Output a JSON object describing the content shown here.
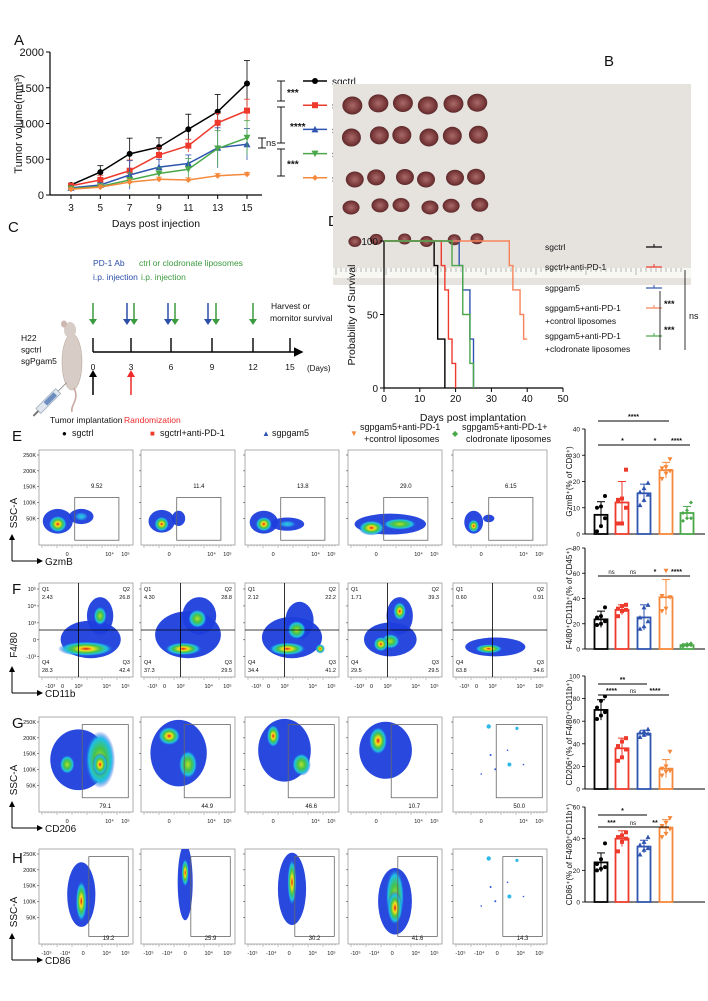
{
  "panel_labels": {
    "A": "A",
    "B": "B",
    "C": "C",
    "D": "D",
    "E": "E",
    "F": "F",
    "G": "G",
    "H": "H"
  },
  "colors": {
    "sgctrl": "#000000",
    "anti": "#ee3a2c",
    "pgam": "#2f55b0",
    "clod": "#4aa84a",
    "ctrl_lipo": "#f5883a"
  },
  "chart_data": [
    {
      "type": "line",
      "panel": "A",
      "xlabel": "Days post injection",
      "ylabel": "Tumor volume(mm³)",
      "ylim": [
        0,
        2000
      ],
      "y_ticks": [
        0,
        500,
        1000,
        1500,
        2000
      ],
      "x": [
        3,
        5,
        7,
        9,
        11,
        13,
        15
      ],
      "series": [
        {
          "name": "sgctrl",
          "color": "#000000",
          "marker": "circle",
          "values": [
            140,
            320,
            575,
            670,
            920,
            1165,
            1560
          ],
          "err": [
            20,
            90,
            220,
            130,
            210,
            240,
            320
          ]
        },
        {
          "name": "sgctrl+anti-PD-1",
          "color": "#ee3a2c",
          "marker": "square",
          "values": [
            130,
            210,
            340,
            560,
            690,
            1010,
            1180
          ],
          "err": [
            30,
            60,
            150,
            100,
            90,
            130,
            160
          ]
        },
        {
          "name": "sgpgam5",
          "color": "#2f55b0",
          "marker": "triangle-up",
          "values": [
            100,
            140,
            280,
            390,
            440,
            660,
            710
          ],
          "err": [
            20,
            30,
            200,
            110,
            120,
            280,
            220
          ]
        },
        {
          "name": "sgpgam5+anti-PD-1+clodronate liposomes",
          "color": "#4aa84a",
          "marker": "triangle-down",
          "values": [
            90,
            120,
            210,
            300,
            360,
            650,
            800
          ],
          "err": [
            20,
            30,
            100,
            80,
            150,
            250,
            240
          ]
        },
        {
          "name": "sgpgam5+anti-PD-1+control liposomes",
          "color": "#f5883a",
          "marker": "diamond",
          "values": [
            80,
            110,
            180,
            220,
            210,
            270,
            290
          ],
          "err": [
            20,
            30,
            40,
            30,
            30,
            30,
            25
          ]
        }
      ],
      "significance": [
        "***",
        "****",
        "ns",
        "***"
      ]
    },
    {
      "type": "line",
      "subtype": "kaplan-meier",
      "panel": "D",
      "xlabel": "Days post implantation",
      "ylabel": "Probability of Survival",
      "xlim": [
        0,
        50
      ],
      "ylim": [
        0,
        100
      ],
      "x_ticks": [
        0,
        10,
        20,
        30,
        40,
        50
      ],
      "y_ticks": [
        0,
        50,
        100
      ],
      "series": [
        {
          "name": "sgctrl",
          "color": "#000000",
          "events": [
            [
              14,
              83.3
            ],
            [
              15,
              33.3
            ],
            [
              17,
              0
            ]
          ],
          "end": 17
        },
        {
          "name": "sgctrl+anti-PD-1",
          "color": "#ee3a2c",
          "events": [
            [
              16,
              83.3
            ],
            [
              17,
              66.7
            ],
            [
              18,
              33.3
            ],
            [
              19,
              16.7
            ],
            [
              20,
              0
            ]
          ],
          "end": 20
        },
        {
          "name": "sgpgam5",
          "color": "#2f55b0",
          "events": [
            [
              21,
              83.3
            ],
            [
              22,
              66.7
            ],
            [
              24,
              33.3
            ],
            [
              25,
              0
            ]
          ],
          "end": 25
        },
        {
          "name": "sgpgam5+anti-PD-1",
          "name2": "+control liposomes",
          "color": "#f7835a",
          "events": [
            [
              35,
              83.3
            ],
            [
              36,
              66.7
            ],
            [
              38,
              50
            ],
            [
              39,
              33.3
            ]
          ],
          "end": 40
        },
        {
          "name": "sgpgam5+anti-PD-1",
          "name2": "+clodronate liposomes",
          "color": "#4aa84a",
          "events": [
            [
              19,
              83.3
            ],
            [
              22,
              50
            ],
            [
              24,
              16.7
            ],
            [
              25,
              0
            ]
          ],
          "end": 25
        }
      ],
      "significance": [
        "***",
        "***",
        "ns"
      ]
    },
    {
      "type": "bar",
      "panel": "E",
      "ylabel": "GzmB⁺(% of CD8⁺)",
      "ylim": [
        0,
        40
      ],
      "y_ticks": [
        0,
        10,
        20,
        30,
        40
      ],
      "categories": [
        "sgctrl",
        "sgctrl+anti-PD-1",
        "sgpgam5",
        "sgpgam5+anti-PD-1+control liposomes",
        "sgpgam5+anti-PD-1+clodronate liposomes"
      ],
      "values": [
        7.3,
        12,
        15.5,
        24.3,
        8
      ],
      "sd": [
        5,
        8,
        3.5,
        3,
        2.5
      ],
      "points": [
        [
          1,
          3,
          6,
          10,
          10.5,
          14.5
        ],
        [
          4,
          4,
          10,
          13,
          13.5,
          24.5
        ],
        [
          11,
          13,
          15,
          16,
          17.5,
          19.5
        ],
        [
          21,
          23,
          24,
          25,
          25.5,
          28.5
        ],
        [
          5,
          6,
          6,
          8,
          9,
          12
        ]
      ],
      "significance": [
        {
          "from": 0,
          "to": 3,
          "label": "****",
          "level": 1
        },
        {
          "from": 0,
          "to": 2,
          "label": "*",
          "level": 0
        },
        {
          "from": 2,
          "to": 3,
          "label": "*",
          "level": 0
        },
        {
          "from": 3,
          "to": 4,
          "label": "****",
          "level": 0
        }
      ]
    },
    {
      "type": "bar",
      "panel": "F",
      "ylabel": "F4/80⁺CD11b⁺(% of CD45⁺)",
      "ylim": [
        0,
        80
      ],
      "y_ticks": [
        0,
        20,
        40,
        60,
        80
      ],
      "categories": [
        "sgctrl",
        "sgctrl+anti-PD-1",
        "sgpgam5",
        "sgpgam5+anti-PD-1+control liposomes",
        "sgpgam5+anti-PD-1+clodronate liposomes"
      ],
      "values": [
        23.5,
        31,
        25,
        41,
        3
      ],
      "sd": [
        6.5,
        4,
        10,
        14,
        1
      ],
      "points": [
        [
          19,
          20,
          22,
          25,
          26,
          33
        ],
        [
          26,
          30,
          31,
          32,
          34,
          35
        ],
        [
          16,
          18,
          22,
          25,
          33,
          35
        ],
        [
          30,
          32,
          41,
          42,
          62
        ],
        [
          2,
          2.5,
          3,
          3.5,
          4,
          4.5
        ]
      ],
      "significance": [
        {
          "from": 0,
          "to": 1,
          "label": "ns",
          "level": 0
        },
        {
          "from": 1,
          "to": 2,
          "label": "ns",
          "level": 0
        },
        {
          "from": 2,
          "to": 3,
          "label": "*",
          "level": 0
        },
        {
          "from": 3,
          "to": 4,
          "label": "****",
          "level": 0
        }
      ]
    },
    {
      "type": "bar",
      "panel": "G",
      "ylabel": "CD206⁺(% of F4/80⁺CD11b⁺)",
      "ylim": [
        0,
        100
      ],
      "y_ticks": [
        0,
        20,
        40,
        60,
        80,
        100
      ],
      "categories": [
        "sgctrl",
        "sgctrl+anti-PD-1",
        "sgpgam5",
        "sgpgam5+anti-PD-1+control liposomes"
      ],
      "values": [
        70,
        36,
        49,
        18
      ],
      "sd": [
        9,
        9,
        3,
        8
      ],
      "points": [
        [
          62,
          65,
          68,
          72,
          78,
          82
        ],
        [
          25,
          28,
          35,
          38,
          42,
          45
        ],
        [
          46,
          48,
          49,
          50,
          51,
          53
        ],
        [
          12,
          15,
          16,
          18,
          20,
          33
        ]
      ],
      "significance": [
        {
          "from": 0,
          "to": 2,
          "label": "**",
          "level": 1
        },
        {
          "from": 0,
          "to": 1,
          "label": "****",
          "level": 0
        },
        {
          "from": 1,
          "to": 2,
          "label": "ns",
          "level": 0
        },
        {
          "from": 2,
          "to": 3,
          "label": "****",
          "level": 0
        }
      ]
    },
    {
      "type": "bar",
      "panel": "H",
      "ylabel": "CD86⁺(% of F4/80⁺CD11b⁺)",
      "ylim": [
        0,
        60
      ],
      "y_ticks": [
        0,
        20,
        40,
        60
      ],
      "categories": [
        "sgctrl",
        "sgctrl+anti-PD-1",
        "sgpgam5",
        "sgpgam5+anti-PD-1+control liposomes"
      ],
      "values": [
        25,
        40,
        35,
        47
      ],
      "sd": [
        6,
        5,
        4,
        5
      ],
      "points": [
        [
          20,
          21,
          22,
          24,
          27,
          37
        ],
        [
          32,
          38,
          40,
          41,
          42,
          44
        ],
        [
          30,
          33,
          34,
          36,
          38,
          41
        ],
        [
          41,
          43,
          46,
          48,
          50,
          53
        ]
      ],
      "significance": [
        {
          "from": 0,
          "to": 2,
          "label": "*",
          "level": 1
        },
        {
          "from": 0,
          "to": 1,
          "label": "***",
          "level": 0
        },
        {
          "from": 1,
          "to": 2,
          "label": "ns",
          "level": 0
        },
        {
          "from": 2,
          "to": 3,
          "label": "**",
          "level": 0
        }
      ]
    }
  ],
  "panel_c": {
    "pd1_label": "PD-1 Ab",
    "pd1_sub": "i.p. injection",
    "lipo_label": "ctrl or clodronate liposomes",
    "lipo_sub": "i.p. injection",
    "cells": [
      "H22",
      "sgctrl",
      "sgPgam5"
    ],
    "days": [
      "0",
      "3",
      "6",
      "9",
      "12",
      "15"
    ],
    "days_unit": "(Days)",
    "harvest": "Harvest  or",
    "monitor": "mornitor survival",
    "implant": "Tumor implantation",
    "random": "Randomization"
  },
  "legend_e": [
    {
      "l1": "sgctrl",
      "l2": "",
      "sym": "●",
      "color": "#000000"
    },
    {
      "l1": "sgctrl+anti-PD-1",
      "l2": "",
      "sym": "■",
      "color": "#ee3a2c"
    },
    {
      "l1": "sgpgam5",
      "l2": "",
      "sym": "▲",
      "color": "#2f55b0"
    },
    {
      "l1": "sgpgam5+anti-PD-1",
      "l2": "+control liposomes",
      "sym": "▼",
      "color": "#f5883a"
    },
    {
      "l1": "sgpgam5+anti-PD-1+",
      "l2": "clodronate liposomes",
      "sym": "◆",
      "color": "#4aa84a"
    }
  ],
  "flow": {
    "E": {
      "ylabel": "SSC-A",
      "xlabel": "GzmB",
      "y_ticks": [
        "250K",
        "200K",
        "150K",
        "100K",
        "50K"
      ],
      "x_ticks": [
        "0",
        "10⁴",
        "10⁵"
      ],
      "gates": [
        "9.52",
        "11.4",
        "13.8",
        "29.0",
        "6.15"
      ]
    },
    "F": {
      "ylabel": "F4/80",
      "xlabel": "CD11b",
      "y_ticks": [
        "10⁵",
        "10⁴",
        "10³",
        "0",
        "-10³"
      ],
      "x_ticks": [
        "-10³",
        "0",
        "10³",
        "10⁴",
        "10⁵"
      ],
      "quadrants": [
        {
          "Q1": "2.43",
          "Q2": "26.8",
          "Q3": "42.4",
          "Q4": "28.3"
        },
        {
          "Q1": "4.30",
          "Q2": "28.8",
          "Q3": "29.5",
          "Q4": "37.3"
        },
        {
          "Q1": "2.12",
          "Q2": "22.2",
          "Q3": "41.2",
          "Q4": "34.4"
        },
        {
          "Q1": "1.71",
          "Q2": "39.3",
          "Q3": "29.5",
          "Q4": "29.5"
        },
        {
          "Q1": "0.60",
          "Q2": "0.91",
          "Q3": "34.6",
          "Q4": "63.8"
        }
      ],
      "qnames": {
        "Q1": "Q1",
        "Q2": "Q2",
        "Q3": "Q3",
        "Q4": "Q4"
      }
    },
    "G": {
      "ylabel": "SSC-A",
      "xlabel": "CD206",
      "y_ticks": [
        "250K",
        "200K",
        "150K",
        "100K",
        "50K"
      ],
      "x_ticks": [
        "0",
        "10⁴",
        "10⁵"
      ],
      "gates": [
        "79.1",
        "44.9",
        "46.6",
        "10.7",
        "50.0"
      ]
    },
    "H": {
      "ylabel": "SSC-A",
      "xlabel": "CD86",
      "y_ticks": [
        "250K",
        "200K",
        "150K",
        "100K",
        "50K"
      ],
      "x_ticks": [
        "-10⁵",
        "-10⁴",
        "0",
        "10⁴",
        "10⁵"
      ],
      "gates": [
        "19.2",
        "25.9",
        "30.2",
        "41.6",
        "14.3"
      ]
    }
  }
}
